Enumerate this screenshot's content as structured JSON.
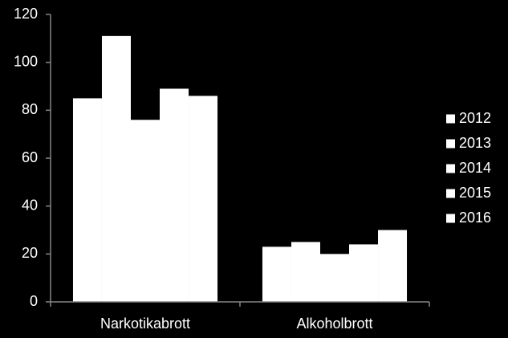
{
  "chart_data": {
    "type": "bar",
    "categories": [
      "Narkotikabrott",
      "Alkoholbrott"
    ],
    "series": [
      {
        "name": "2012",
        "color": "#ffffff",
        "values": [
          85,
          23
        ]
      },
      {
        "name": "2013",
        "color": "#ffffff",
        "values": [
          111,
          25
        ]
      },
      {
        "name": "2014",
        "color": "#ffffff",
        "values": [
          76,
          20
        ]
      },
      {
        "name": "2015",
        "color": "#ffffff",
        "values": [
          89,
          24
        ]
      },
      {
        "name": "2016",
        "color": "#ffffff",
        "values": [
          86,
          30
        ]
      }
    ],
    "ylim": [
      0,
      120
    ],
    "yticks": [
      0,
      20,
      40,
      60,
      80,
      100,
      120
    ],
    "grid": false,
    "legend": "right"
  }
}
